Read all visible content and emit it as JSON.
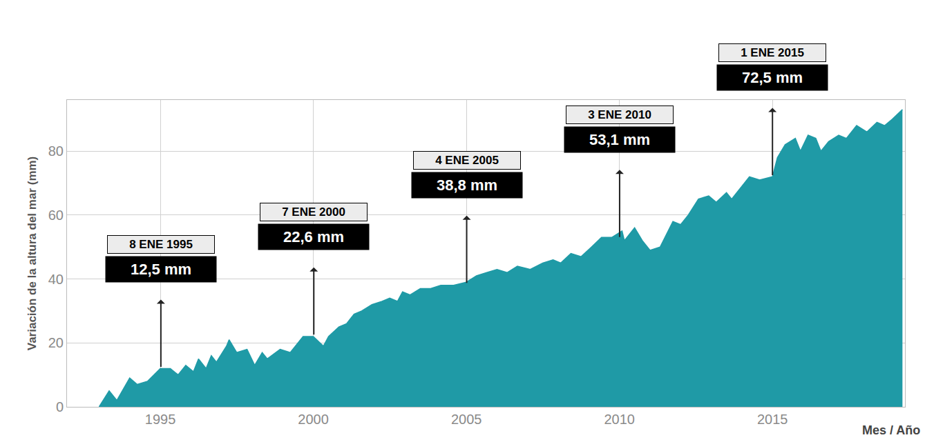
{
  "chart_data": {
    "type": "area",
    "y_label": "Variación de la altura del mar (mm)",
    "x_label": "Mes / Año",
    "x": [
      "1993-01",
      "1993-05",
      "1993-08",
      "1994-01",
      "1994-04",
      "1994-08",
      "1995-01",
      "1995-05",
      "1995-08",
      "1995-11",
      "1996-02",
      "1996-04",
      "1996-07",
      "1996-09",
      "1996-11",
      "1997-03",
      "1997-04",
      "1997-07",
      "1997-11",
      "1998-02",
      "1998-05",
      "1998-07",
      "1998-12",
      "1999-04",
      "1999-09",
      "2000-01",
      "2000-05",
      "2000-07",
      "2000-11",
      "2001-02",
      "2001-05",
      "2001-08",
      "2001-12",
      "2002-04",
      "2002-07",
      "2002-10",
      "2002-12",
      "2003-03",
      "2003-07",
      "2003-11",
      "2004-03",
      "2004-08",
      "2005-01",
      "2005-05",
      "2005-09",
      "2006-01",
      "2006-05",
      "2006-09",
      "2007-02",
      "2007-07",
      "2007-11",
      "2008-02",
      "2008-06",
      "2008-10",
      "2009-02",
      "2009-06",
      "2009-10",
      "2010-02",
      "2010-03",
      "2010-07",
      "2010-10",
      "2011-01",
      "2011-05",
      "2011-08",
      "2011-10",
      "2012-01",
      "2012-04",
      "2012-08",
      "2012-12",
      "2013-03",
      "2013-07",
      "2013-09",
      "2013-12",
      "2014-04",
      "2014-08",
      "2015-01",
      "2015-03",
      "2015-06",
      "2015-10",
      "2015-12",
      "2016-03",
      "2016-06",
      "2016-08",
      "2016-11",
      "2017-03",
      "2017-06",
      "2017-10",
      "2018-02",
      "2018-06",
      "2018-09",
      "2018-12",
      "2019-04"
    ],
    "values": [
      0,
      5,
      2,
      9,
      7,
      8,
      12,
      12,
      10,
      13,
      11,
      15,
      12,
      16,
      14,
      19,
      21,
      17,
      18,
      13,
      17,
      15,
      18,
      17,
      22,
      22,
      19,
      22,
      25,
      26,
      29,
      30,
      32,
      33,
      34,
      33,
      36,
      35,
      37,
      37,
      38,
      38,
      39,
      41,
      42,
      43,
      42,
      44,
      43,
      45,
      46,
      45,
      48,
      47,
      50,
      53,
      53,
      55,
      52,
      56,
      52,
      49,
      50,
      55,
      58,
      57,
      60,
      65,
      66,
      64,
      67,
      65,
      68,
      72,
      71,
      72,
      78,
      82,
      84,
      80,
      85,
      84,
      80,
      83,
      85,
      84,
      88,
      86,
      89,
      88,
      90,
      93
    ],
    "color": "#1f9aa6",
    "xlim": [
      "1991-12-15",
      "2019-05-01"
    ],
    "ylim": [
      0,
      96
    ],
    "xticks": [
      {
        "value": "1995-01-01",
        "label": "1995"
      },
      {
        "value": "2000-01-01",
        "label": "2000"
      },
      {
        "value": "2005-01-01",
        "label": "2005"
      },
      {
        "value": "2010-01-01",
        "label": "2010"
      },
      {
        "value": "2015-01-01",
        "label": "2015"
      }
    ],
    "yticks": [
      0,
      20,
      40,
      60,
      80
    ],
    "grid": true,
    "annotations": [
      {
        "x": "1995-01-08",
        "date": "8 ENE 1995",
        "value": 12.5,
        "label": "12,5 mm"
      },
      {
        "x": "2000-01-07",
        "date": "7 ENE 2000",
        "value": 22.6,
        "label": "22,6 mm"
      },
      {
        "x": "2005-01-04",
        "date": "4 ENE 2005",
        "value": 38.8,
        "label": "38,8 mm"
      },
      {
        "x": "2010-01-03",
        "date": "3 ENE 2010",
        "value": 53.1,
        "label": "53,1 mm"
      },
      {
        "x": "2015-01-01",
        "date": "1 ENE 2015",
        "value": 72.5,
        "label": "72,5 mm"
      }
    ]
  }
}
